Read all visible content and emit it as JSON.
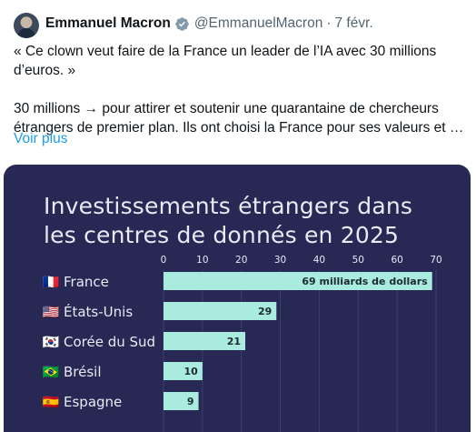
{
  "tweet": {
    "author": "Emmanuel Macron",
    "handle": "@EmmanuelMacron",
    "separator": "·",
    "date": "7 févr.",
    "text_line1": "« Ce clown veut faire de la France un leader de l’IA avec 30 millions",
    "text_line2": "d’euros. »",
    "text_line3": "30 millions → pour attirer et soutenir une quarantaine de chercheurs",
    "text_line4": "étrangers de premier plan. Ils ont choisi la France pour ses valeurs et …",
    "show_more": "Voir plus",
    "verified_color": "#829aab",
    "link_color": "#1d9bf0"
  },
  "chart_data": {
    "type": "bar",
    "orientation": "horizontal",
    "title_line1": "Investissements étrangers dans",
    "title_line2": "les centres de donnés en 2025",
    "categories": [
      "France",
      "États-Unis",
      "Corée du Sud",
      "Brésil",
      "Espagne"
    ],
    "flags": [
      "🇫🇷",
      "🇺🇸",
      "🇰🇷",
      "🇧🇷",
      "🇪🇸"
    ],
    "values": [
      69,
      29,
      21,
      10,
      9
    ],
    "value_labels": [
      "69 milliards de dollars",
      "29",
      "21",
      "10",
      "9"
    ],
    "xticks": [
      0,
      10,
      20,
      30,
      40,
      50,
      60,
      70
    ],
    "xlim": [
      0,
      70
    ],
    "grid": true,
    "background": "#272854",
    "bar_color": "#a9ecdf",
    "text_color": "#e8eaf5"
  }
}
